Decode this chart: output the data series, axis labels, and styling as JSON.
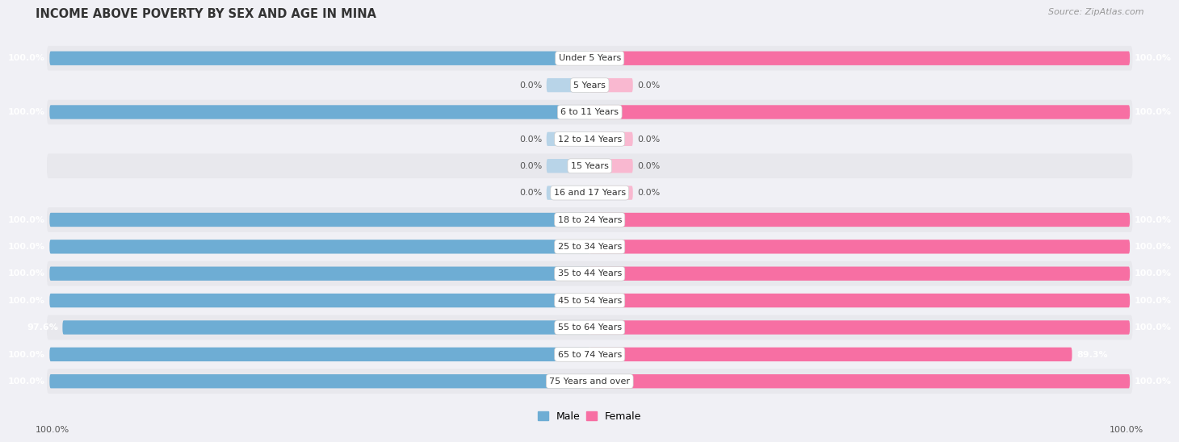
{
  "title": "INCOME ABOVE POVERTY BY SEX AND AGE IN MINA",
  "source": "Source: ZipAtlas.com",
  "categories": [
    "Under 5 Years",
    "5 Years",
    "6 to 11 Years",
    "12 to 14 Years",
    "15 Years",
    "16 and 17 Years",
    "18 to 24 Years",
    "25 to 34 Years",
    "35 to 44 Years",
    "45 to 54 Years",
    "55 to 64 Years",
    "65 to 74 Years",
    "75 Years and over"
  ],
  "male": [
    100.0,
    0.0,
    100.0,
    0.0,
    0.0,
    0.0,
    100.0,
    100.0,
    100.0,
    100.0,
    97.6,
    100.0,
    100.0
  ],
  "female": [
    100.0,
    0.0,
    100.0,
    0.0,
    0.0,
    0.0,
    100.0,
    100.0,
    100.0,
    100.0,
    100.0,
    89.3,
    100.0
  ],
  "male_color": "#6eadd4",
  "female_color": "#f76fa3",
  "male_color_light": "#b8d4e8",
  "female_color_light": "#f9b8d0",
  "row_bg_dark": "#e8e8ed",
  "row_bg_light": "#f0f0f5",
  "label_fontsize": 8.0,
  "title_fontsize": 10.5,
  "source_fontsize": 8.0,
  "legend_fontsize": 9.0,
  "value_fontsize": 8.0,
  "bg_color": "#f0f0f5"
}
